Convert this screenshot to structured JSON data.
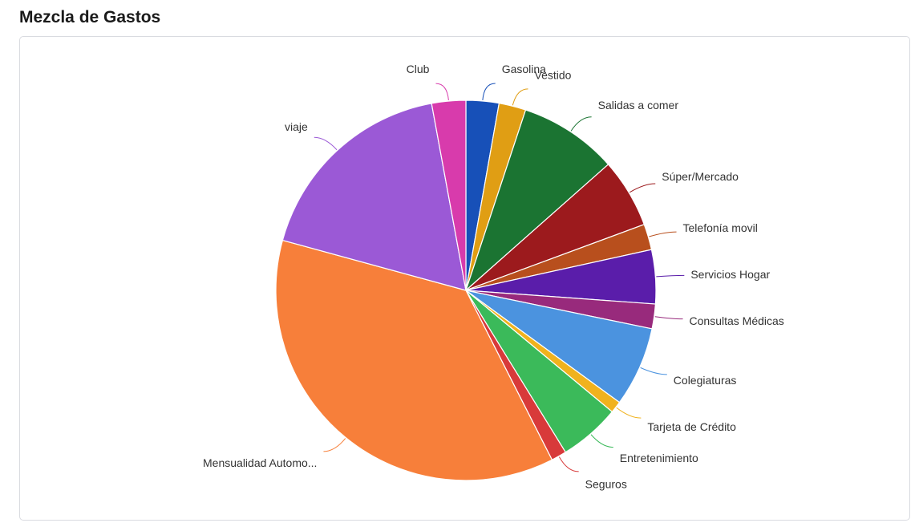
{
  "page": {
    "title": "Mezcla de Gastos"
  },
  "chart_data": {
    "type": "pie",
    "title": "Mezcla de Gastos",
    "legend": "none",
    "categories": [
      "Gasolina",
      "Vestido",
      "Salidas a comer",
      "Súper/Mercado",
      "Telefonía movil",
      "Servicios Hogar",
      "Consultas Médicas",
      "Colegiaturas",
      "Tarjeta de Crédito",
      "Entretenimiento",
      "Seguros",
      "Mensualidad Automo...",
      "viaje",
      "Club"
    ],
    "values": [
      2.8,
      2.3,
      8.4,
      5.9,
      2.2,
      4.6,
      2.1,
      6.8,
      1.0,
      5.2,
      1.3,
      36.8,
      17.9,
      2.9
    ],
    "colors": [
      "#1750b8",
      "#e09e14",
      "#1b7432",
      "#9c1a1d",
      "#b84f1d",
      "#5a1daa",
      "#982a7c",
      "#4b93df",
      "#f0b21d",
      "#3bba5a",
      "#d83a3a",
      "#f77f3a",
      "#9b59d6",
      "#d83bac"
    ]
  }
}
